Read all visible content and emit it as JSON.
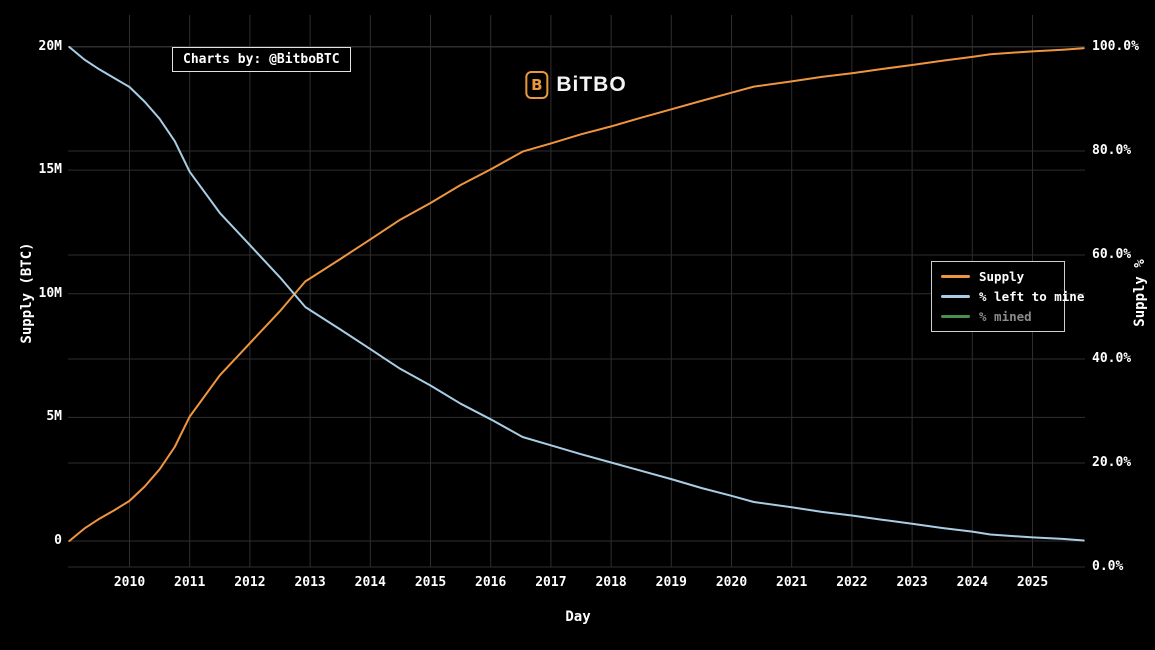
{
  "annotation": {
    "text": "Charts by: @BitboBTC"
  },
  "logo": {
    "icon_glyph": "B",
    "text": "BiTBO",
    "accent_color": "#e9983d"
  },
  "legend": {
    "items": [
      {
        "label": "Supply",
        "color": "#f0953f",
        "enabled": true
      },
      {
        "label": "% left to mine",
        "color": "#a9cde5",
        "enabled": true
      },
      {
        "label": "% mined",
        "color": "#4a8f4e",
        "enabled": false
      }
    ]
  },
  "colors": {
    "background": "#000000",
    "gridline": "#2e2e2e",
    "text": "#ffffff",
    "supply_line": "#f0953f",
    "pct_left_line": "#a9cde5",
    "pct_mined_line": "#4a8f4e"
  },
  "chart_data": {
    "type": "line",
    "title": "",
    "xlabel": "Day",
    "ylabel_left": "Supply (BTC)",
    "ylabel_right": "Supply %",
    "grid": true,
    "legend_position": "right-middle",
    "x_range": [
      2009.0,
      2025.87
    ],
    "ylim_left_btc_millions": [
      0,
      21.3
    ],
    "ylim_right_percent": [
      0,
      106
    ],
    "x_tick_values": [
      2010,
      2011,
      2012,
      2013,
      2014,
      2015,
      2016,
      2017,
      2018,
      2019,
      2020,
      2021,
      2022,
      2023,
      2024,
      2025
    ],
    "x_tick_labels": [
      "2010",
      "2011",
      "2012",
      "2013",
      "2014",
      "2015",
      "2016",
      "2017",
      "2018",
      "2019",
      "2020",
      "2021",
      "2022",
      "2023",
      "2024",
      "2025"
    ],
    "left_tick_values": [
      0,
      5,
      10,
      15,
      20
    ],
    "left_tick_labels": [
      "0",
      "5M",
      "10M",
      "15M",
      "20M"
    ],
    "right_tick_values": [
      0,
      20,
      40,
      60,
      80,
      100
    ],
    "right_tick_labels": [
      "0.0%",
      "20.0%",
      "40.0%",
      "60.0%",
      "80.0%",
      "100.0%"
    ],
    "x_unit": "year",
    "series": [
      {
        "name": "Supply",
        "axis": "left",
        "unit": "million BTC",
        "color": "#f0953f",
        "visible": true,
        "x": [
          2009.0,
          2009.25,
          2009.5,
          2009.75,
          2010.0,
          2010.25,
          2010.5,
          2010.75,
          2011.0,
          2011.5,
          2012.0,
          2012.5,
          2012.92,
          2013.0,
          2013.5,
          2014.0,
          2014.5,
          2015.0,
          2015.5,
          2016.0,
          2016.53,
          2017.0,
          2017.5,
          2018.0,
          2018.5,
          2019.0,
          2019.5,
          2020.0,
          2020.37,
          2021.0,
          2021.5,
          2022.0,
          2022.5,
          2023.0,
          2023.5,
          2024.0,
          2024.3,
          2025.0,
          2025.5,
          2025.85
        ],
        "values": [
          0,
          0.5,
          0.9,
          1.25,
          1.62,
          2.2,
          2.9,
          3.8,
          5.03,
          6.7,
          8.0,
          9.3,
          10.5,
          10.62,
          11.4,
          12.2,
          13.0,
          13.67,
          14.4,
          15.03,
          15.75,
          16.08,
          16.45,
          16.77,
          17.12,
          17.46,
          17.8,
          18.13,
          18.38,
          18.59,
          18.77,
          18.92,
          19.09,
          19.25,
          19.42,
          19.58,
          19.69,
          19.8,
          19.87,
          19.93
        ]
      },
      {
        "name": "% left to mine",
        "axis": "right",
        "unit": "percent",
        "color": "#a9cde5",
        "visible": true,
        "x": [
          2009.0,
          2009.25,
          2009.5,
          2009.75,
          2010.0,
          2010.25,
          2010.5,
          2010.75,
          2011.0,
          2011.5,
          2012.0,
          2012.5,
          2012.92,
          2013.0,
          2013.5,
          2014.0,
          2014.5,
          2015.0,
          2015.5,
          2016.0,
          2016.53,
          2017.0,
          2017.5,
          2018.0,
          2018.5,
          2019.0,
          2019.5,
          2020.0,
          2020.37,
          2021.0,
          2021.5,
          2022.0,
          2022.5,
          2023.0,
          2023.5,
          2024.0,
          2024.3,
          2025.0,
          2025.5,
          2025.85
        ],
        "values": [
          100,
          97.6,
          95.7,
          94.0,
          92.3,
          89.5,
          86.2,
          81.9,
          76.0,
          68.1,
          61.9,
          55.7,
          50.0,
          49.4,
          45.7,
          41.9,
          38.1,
          34.9,
          31.4,
          28.4,
          25.0,
          23.4,
          21.7,
          20.1,
          18.5,
          16.9,
          15.2,
          13.7,
          12.5,
          11.5,
          10.6,
          9.9,
          9.1,
          8.3,
          7.5,
          6.8,
          6.25,
          5.7,
          5.4,
          5.1
        ]
      },
      {
        "name": "% mined",
        "axis": "right",
        "unit": "percent",
        "color": "#4a8f4e",
        "visible": false,
        "x": [],
        "values": []
      }
    ]
  }
}
